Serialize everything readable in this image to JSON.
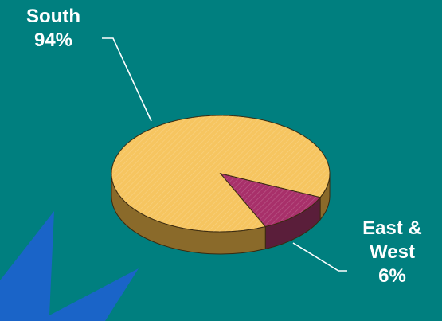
{
  "chart_data": {
    "type": "pie",
    "title": "",
    "slices": [
      {
        "name": "South",
        "value": 94,
        "label_lines": [
          "South",
          "94%"
        ],
        "color": "#f6c560",
        "side_color": "#8a6a2a"
      },
      {
        "name": "East & West",
        "value": 6,
        "label_lines": [
          "East &",
          "West",
          "6%"
        ],
        "color": "#a8306a",
        "side_color": "#5a1e3a"
      }
    ],
    "style": "3d-tilted"
  },
  "colors": {
    "background": "#007f7f",
    "decoration": "#1a64c8",
    "leader_line": "#ffffff"
  },
  "decoration": {
    "shape": "blue-lightning-bolt"
  }
}
